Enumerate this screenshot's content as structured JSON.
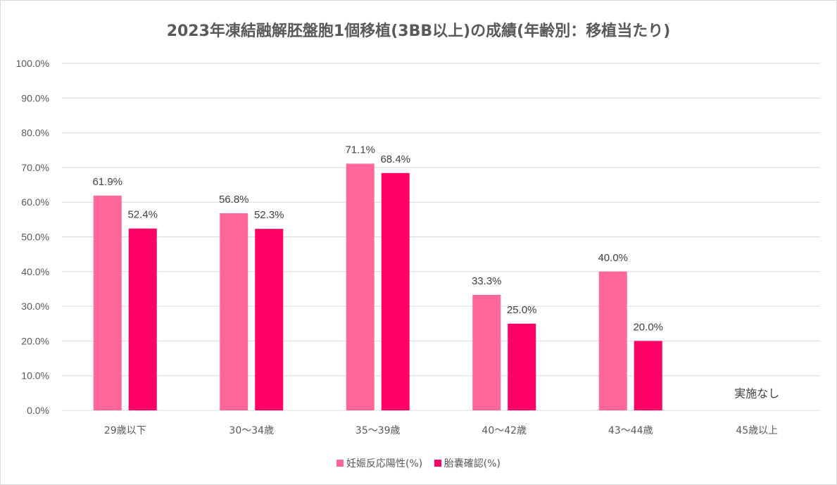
{
  "chart_data": {
    "type": "bar",
    "title": "2023年凍結融解胚盤胞1個移植(3BB以上)の成績(年齢別：移植当たり)",
    "categories": [
      "29歳以下",
      "30～34歳",
      "35～39歳",
      "40～42歳",
      "43～44歳",
      "45歳以上"
    ],
    "series": [
      {
        "name": "妊娠反応陽性(%)",
        "color": "#ff6699",
        "values": [
          61.9,
          56.8,
          71.1,
          33.3,
          40.0,
          null
        ],
        "labels": [
          "61.9%",
          "56.8%",
          "71.1%",
          "33.3%",
          "40.0%",
          ""
        ]
      },
      {
        "name": "胎嚢確認(%)",
        "color": "#ff0066",
        "values": [
          52.4,
          52.3,
          68.4,
          25.0,
          20.0,
          null
        ],
        "labels": [
          "52.4%",
          "52.3%",
          "68.4%",
          "25.0%",
          "20.0%",
          ""
        ]
      }
    ],
    "ylim": [
      0,
      100
    ],
    "yticks": [
      "0.0%",
      "10.0%",
      "20.0%",
      "30.0%",
      "40.0%",
      "50.0%",
      "60.0%",
      "70.0%",
      "80.0%",
      "90.0%",
      "100.0%"
    ],
    "grid": true,
    "legend_position": "bottom",
    "annotation": "実施なし"
  }
}
